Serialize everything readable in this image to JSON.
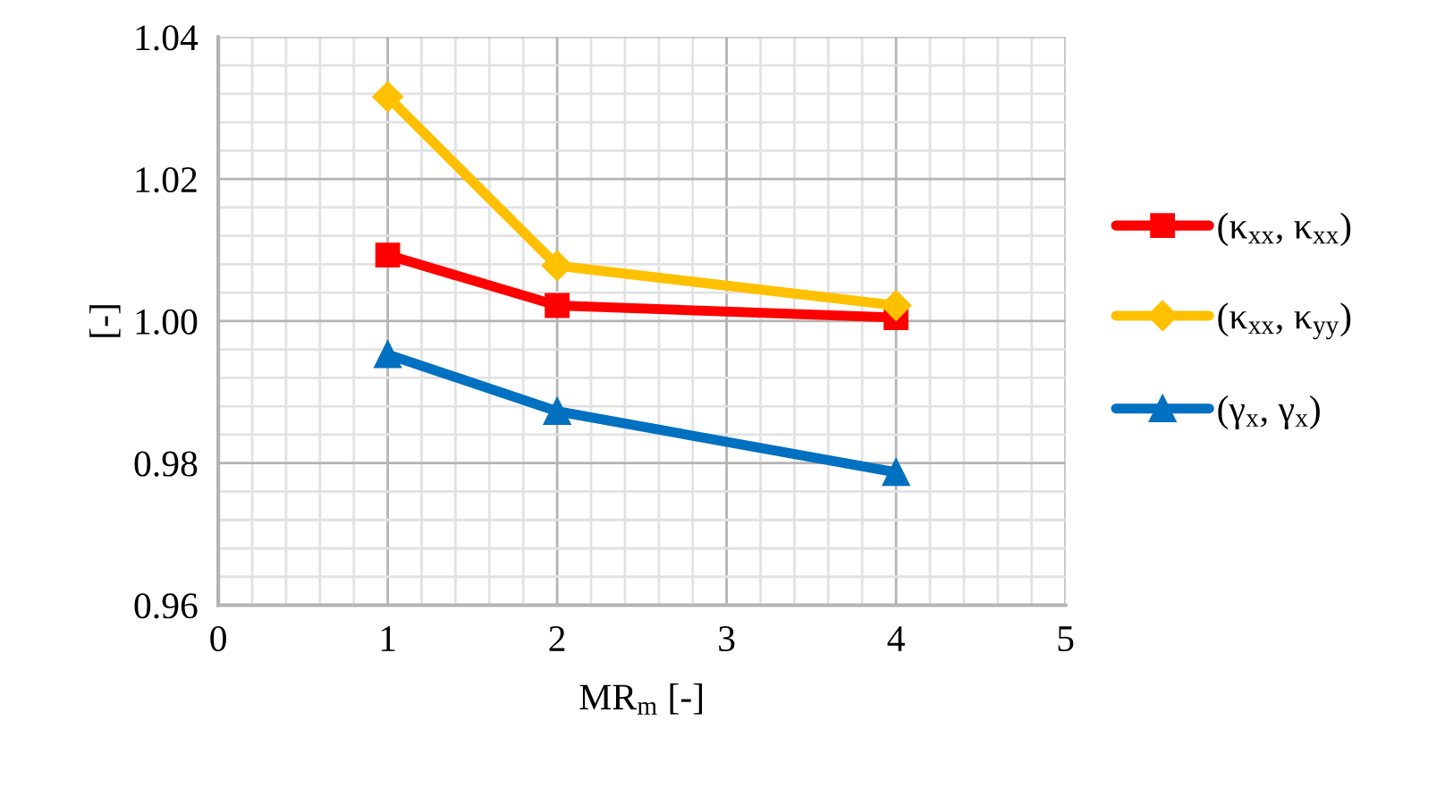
{
  "chart_data": {
    "type": "line",
    "xlabel": "MR$_{m}$ [-]",
    "ylabel": "[-]",
    "xlim": [
      0,
      5
    ],
    "xticks": [
      0,
      1,
      2,
      3,
      4,
      5
    ],
    "ylim": [
      0.96,
      1.04
    ],
    "yticks": [
      {
        "value": 0.96,
        "label": "0.96"
      },
      {
        "value": 0.98,
        "label": "0.98"
      },
      {
        "value": 1.0,
        "label": "1.00"
      },
      {
        "value": 1.02,
        "label": "1.02"
      },
      {
        "value": 1.04,
        "label": "1.04"
      }
    ],
    "grid": true,
    "legend": "right",
    "line_style": "solid",
    "series": [
      {
        "name": "(κ$_{xx}$, κ$_{xx}$)",
        "color": "#ff0000",
        "marker": "square",
        "x": [
          1,
          2,
          4
        ],
        "values": [
          1.0093,
          1.0022,
          1.0005
        ]
      },
      {
        "name": "(κ$_{xx}$, κ$_{yy}$)",
        "color": "#ffc000",
        "marker": "diamond",
        "x": [
          1,
          2,
          4
        ],
        "values": [
          1.0316,
          1.0078,
          1.0022
        ]
      },
      {
        "name": "(γ$_{x}$, γ$_{x}$)",
        "color": "#0070c0",
        "marker": "triangle",
        "x": [
          1,
          2,
          4
        ],
        "values": [
          0.9953,
          0.9873,
          0.9787
        ]
      }
    ]
  }
}
